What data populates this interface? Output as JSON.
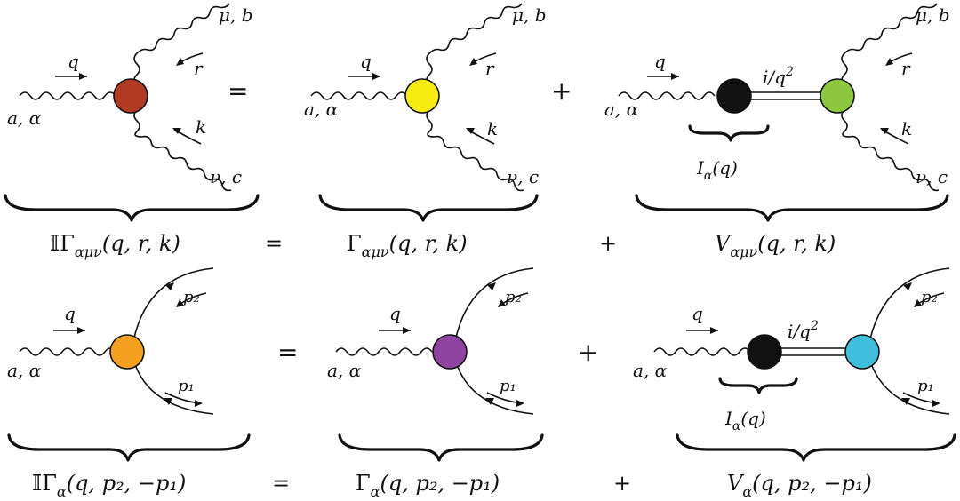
{
  "colors": {
    "row1_full_vertex": "#b03a22",
    "row1_gamma_vertex": "#f7ec12",
    "row1_v_vertex": "#8dc63f",
    "row2_full_vertex": "#f5a021",
    "row2_gamma_vertex": "#8e44a0",
    "row2_v_vertex": "#3fbfdc",
    "pole_blob": "#111111"
  },
  "labels": {
    "q": "q",
    "a_alpha": "a, α",
    "mu_b": "μ, b",
    "nu_c": "ν, c",
    "r": "r",
    "k": "k",
    "p1": "p₁",
    "p2": "p₂",
    "pole": "i/q²",
    "pole_base": "i/q",
    "pole_exp": "2",
    "I_alpha": "I",
    "I_sub": "α",
    "I_arg": "(q)"
  },
  "equations": {
    "row1": {
      "lhs_eq": "=",
      "rhs_plus": "+",
      "cap_eq": "=",
      "cap_plus": "+",
      "full": {
        "sym": "𝕀Γ",
        "sub": "αμν",
        "args": "(q, r, k)"
      },
      "gamma": {
        "sym": "Γ",
        "sub": "αμν",
        "args": "(q, r, k)"
      },
      "v": {
        "sym": "V",
        "sub": "αμν",
        "args": "(q, r, k)"
      }
    },
    "row2": {
      "lhs_eq": "=",
      "rhs_plus": "+",
      "cap_eq": "=",
      "cap_plus": "+",
      "full": {
        "sym": "𝕀Γ",
        "sub": "α",
        "args": "(q, p₂, −p₁)"
      },
      "gamma": {
        "sym": "Γ",
        "sub": "α",
        "args": "(q, p₂, −p₁)"
      },
      "v": {
        "sym": "V",
        "sub": "α",
        "args": "(q, p₂, −p₁)"
      }
    }
  }
}
